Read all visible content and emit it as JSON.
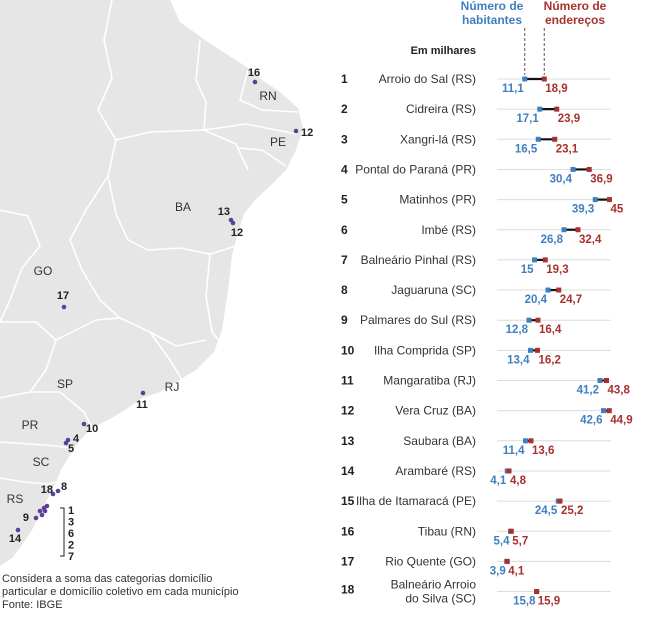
{
  "legend": {
    "habitantes": [
      "Número de",
      "habitantes"
    ],
    "enderecos": [
      "Número de",
      "endereços"
    ]
  },
  "unit_label": "Em milhares",
  "footnote": {
    "line1": "Considera a soma das categorias domicílio",
    "line2": "particular e domicílio coletivo em cada município",
    "source": "Fonte: IBGE"
  },
  "map": {
    "state_labels": [
      "RN",
      "PE",
      "BA",
      "GO",
      "SP",
      "RJ",
      "PR",
      "SC",
      "RS"
    ],
    "point_labels": [
      "16",
      "12",
      "13",
      "12",
      "17",
      "11",
      "10",
      "4",
      "5",
      "8",
      "18",
      "9",
      "14"
    ],
    "bracket_labels": [
      "1",
      "3",
      "6",
      "2",
      "7"
    ]
  },
  "colors": {
    "habitantes": "#3f7fc0",
    "enderecos": "#a8312e",
    "map_land": "#e6e6e6",
    "map_outline": "#ffffff",
    "points": "#5b3f9a"
  },
  "chart_data": {
    "type": "dot-range",
    "unit": "Em milhares",
    "series": [
      {
        "name": "Número de habitantes"
      },
      {
        "name": "Número de endereços"
      }
    ],
    "xlim": [
      0,
      50
    ],
    "rows": [
      {
        "rank": "1",
        "city": [
          "Arroio do Sal (RS)"
        ],
        "hab": 11.1,
        "end": 18.9,
        "hab_label": "11,1",
        "end_label": "18,9"
      },
      {
        "rank": "2",
        "city": [
          "Cidreira (RS)"
        ],
        "hab": 17.1,
        "end": 23.9,
        "hab_label": "17,1",
        "end_label": "23,9"
      },
      {
        "rank": "3",
        "city": [
          "Xangri-lá (RS)"
        ],
        "hab": 16.5,
        "end": 23.1,
        "hab_label": "16,5",
        "end_label": "23,1"
      },
      {
        "rank": "4",
        "city": [
          "Pontal do Paraná (PR)"
        ],
        "hab": 30.4,
        "end": 36.9,
        "hab_label": "30,4",
        "end_label": "36,9"
      },
      {
        "rank": "5",
        "city": [
          "Matinhos (PR)"
        ],
        "hab": 39.3,
        "end": 45,
        "hab_label": "39,3",
        "end_label": "45"
      },
      {
        "rank": "6",
        "city": [
          "Imbé (RS)"
        ],
        "hab": 26.8,
        "end": 32.4,
        "hab_label": "26,8",
        "end_label": "32,4"
      },
      {
        "rank": "7",
        "city": [
          "Balneário Pinhal (RS)"
        ],
        "hab": 15,
        "end": 19.3,
        "hab_label": "15",
        "end_label": "19,3"
      },
      {
        "rank": "8",
        "city": [
          "Jaguaruna (SC)"
        ],
        "hab": 20.4,
        "end": 24.7,
        "hab_label": "20,4",
        "end_label": "24,7"
      },
      {
        "rank": "9",
        "city": [
          "Palmares do Sul (RS)"
        ],
        "hab": 12.8,
        "end": 16.4,
        "hab_label": "12,8",
        "end_label": "16,4"
      },
      {
        "rank": "10",
        "city": [
          "Ilha Comprida (SP)"
        ],
        "hab": 13.4,
        "end": 16.2,
        "hab_label": "13,4",
        "end_label": "16,2"
      },
      {
        "rank": "11",
        "city": [
          "Mangaratiba (RJ)"
        ],
        "hab": 41.2,
        "end": 43.8,
        "hab_label": "41,2",
        "end_label": "43,8"
      },
      {
        "rank": "12",
        "city": [
          "Vera Cruz (BA)"
        ],
        "hab": 42.6,
        "end": 44.9,
        "hab_label": "42,6",
        "end_label": "44,9"
      },
      {
        "rank": "13",
        "city": [
          "Saubara (BA)"
        ],
        "hab": 11.4,
        "end": 13.6,
        "hab_label": "11,4",
        "end_label": "13,6"
      },
      {
        "rank": "14",
        "city": [
          "Arambaré (RS)"
        ],
        "hab": 4.1,
        "end": 4.8,
        "hab_label": "4,1",
        "end_label": "4,8"
      },
      {
        "rank": "15",
        "city": [
          "Ilha de Itamaracá (PE)"
        ],
        "hab": 24.5,
        "end": 25.2,
        "hab_label": "24,5",
        "end_label": "25,2"
      },
      {
        "rank": "16",
        "city": [
          "Tibau (RN)"
        ],
        "hab": 5.4,
        "end": 5.7,
        "hab_label": "5,4",
        "end_label": "5,7"
      },
      {
        "rank": "17",
        "city": [
          "Rio Quente (GO)"
        ],
        "hab": 3.9,
        "end": 4.1,
        "hab_label": "3,9",
        "end_label": "4,1"
      },
      {
        "rank": "18",
        "city": [
          "Balneário Arroio",
          "do Silva (SC)"
        ],
        "hab": 15.8,
        "end": 15.9,
        "hab_label": "15,8",
        "end_label": "15,9"
      }
    ]
  }
}
